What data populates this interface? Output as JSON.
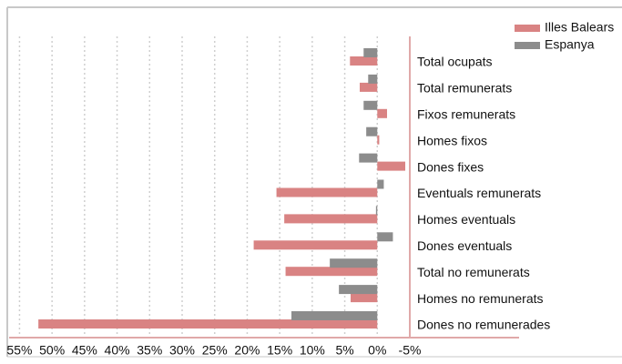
{
  "chart_data": {
    "type": "barh",
    "categories": [
      "Total ocupats",
      "Total remunerats",
      "Fixos remunerats",
      "Homes fixos",
      "Dones fixes",
      "Eventuals remunerats",
      "Homes eventuals",
      "Dones eventuals",
      "Total no remunerats",
      "Homes no remunerats",
      "Dones no remunerades"
    ],
    "series": [
      {
        "name": "Illes Balears",
        "color": "#d98383",
        "values": [
          4.2,
          2.7,
          -1.5,
          -0.3,
          -4.3,
          15.5,
          14.3,
          19.0,
          14.1,
          4.1,
          52.1
        ]
      },
      {
        "name": "Espanya",
        "color": "#8c8c8c",
        "values": [
          2.1,
          1.4,
          2.1,
          1.7,
          2.8,
          -1.0,
          0.2,
          -2.4,
          7.3,
          5.9,
          13.2
        ]
      }
    ],
    "xlim": [
      56.6,
      -5
    ],
    "xticks": [
      {
        "value": 55,
        "label": "55%"
      },
      {
        "value": 50,
        "label": "50%"
      },
      {
        "value": 45,
        "label": "45%"
      },
      {
        "value": 40,
        "label": "40%"
      },
      {
        "value": 35,
        "label": "35%"
      },
      {
        "value": 30,
        "label": "30%"
      },
      {
        "value": 25,
        "label": "25%"
      },
      {
        "value": 20,
        "label": "20%"
      },
      {
        "value": 15,
        "label": "15%"
      },
      {
        "value": 10,
        "label": "10%"
      },
      {
        "value": 5,
        "label": "5%"
      },
      {
        "value": 0,
        "label": "0%"
      },
      {
        "value": -5,
        "label": "-5%"
      }
    ],
    "grid": true,
    "legend": "top-right"
  }
}
